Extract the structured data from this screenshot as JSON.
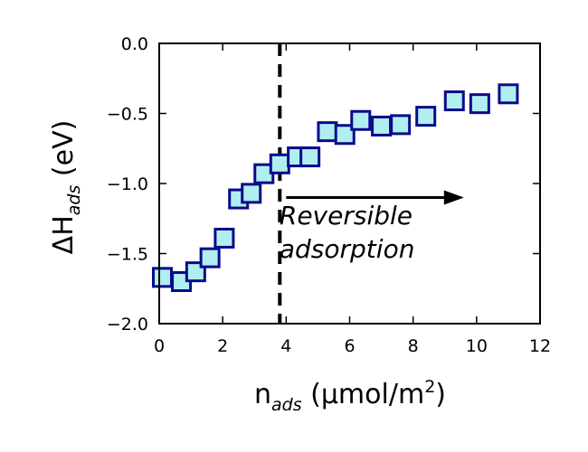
{
  "chart_data": {
    "type": "scatter",
    "xlabel": {
      "main": "n",
      "sub": "ads",
      "rest": " (μmol/m",
      "sup": "2",
      "close": ")"
    },
    "ylabel": {
      "main": "ΔH",
      "sub": "ads",
      "rest": " (eV)"
    },
    "xlim": [
      0,
      12
    ],
    "ylim": [
      -2.0,
      0.0
    ],
    "xticks": [
      0,
      2,
      4,
      6,
      8,
      10,
      12
    ],
    "yticks": [
      -2.0,
      -1.5,
      -1.0,
      -0.5,
      0.0
    ],
    "xtick_labels": [
      "0",
      "2",
      "4",
      "6",
      "8",
      "10",
      "12"
    ],
    "ytick_labels": [
      "−2.0",
      "−1.5",
      "−1.0",
      "−0.5",
      "0.0"
    ],
    "grid": false,
    "series": [
      {
        "marker": "square",
        "face_color": "#b0eef0",
        "edge_color": "#0a0a8c",
        "x": [
          0.1,
          0.7,
          1.15,
          1.6,
          2.05,
          2.5,
          2.9,
          3.3,
          3.8,
          4.35,
          4.75,
          5.3,
          5.85,
          6.35,
          7.0,
          7.6,
          8.4,
          9.3,
          10.1,
          11.0
        ],
        "y": [
          -1.67,
          -1.7,
          -1.63,
          -1.53,
          -1.39,
          -1.11,
          -1.07,
          -0.93,
          -0.86,
          -0.81,
          -0.81,
          -0.63,
          -0.65,
          -0.55,
          -0.59,
          -0.58,
          -0.52,
          -0.41,
          -0.43,
          -0.36
        ]
      }
    ],
    "vline": {
      "x": 3.8,
      "style": "dashed",
      "color": "#000000"
    },
    "arrow": {
      "x_start": 4.0,
      "x_end": 9.6,
      "y": -1.1,
      "color": "#000000"
    },
    "annotation": {
      "lines": [
        "Reversible",
        "adsorption"
      ],
      "x": 4.5,
      "y_lines": [
        -1.29,
        -1.53
      ]
    }
  }
}
